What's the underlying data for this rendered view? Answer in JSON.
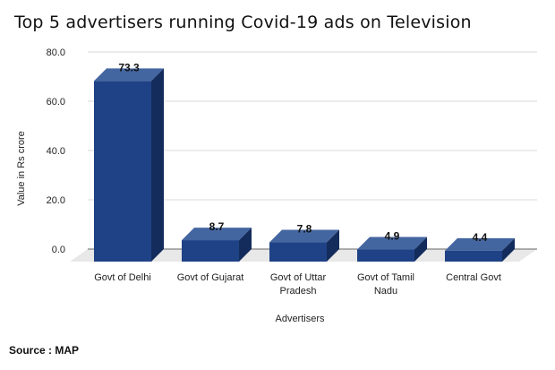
{
  "source": "Source : MAP",
  "chart_data": {
    "type": "bar",
    "title": "Top 5 advertisers running Covid-19 ads on Television",
    "xlabel": "Advertisers",
    "ylabel": "Value in Rs crore",
    "ylim": [
      0,
      80
    ],
    "yticks": [
      "0.0",
      "20.0",
      "40.0",
      "60.0",
      "80.0"
    ],
    "categories": [
      [
        "Govt of Delhi"
      ],
      [
        "Govt of Gujarat"
      ],
      [
        "Govt of Uttar",
        "Pradesh"
      ],
      [
        "Govt of Tamil",
        "Nadu"
      ],
      [
        "Central Govt"
      ]
    ],
    "values": [
      73.3,
      8.7,
      7.8,
      4.9,
      4.4
    ],
    "data_labels": [
      "73.3",
      "8.7",
      "7.8",
      "4.9",
      "4.4"
    ],
    "grid": true,
    "colors": {
      "front": "#1f4286",
      "top": "#4466a0",
      "side": "#142c5c",
      "floor": "#e8e8e8"
    }
  }
}
